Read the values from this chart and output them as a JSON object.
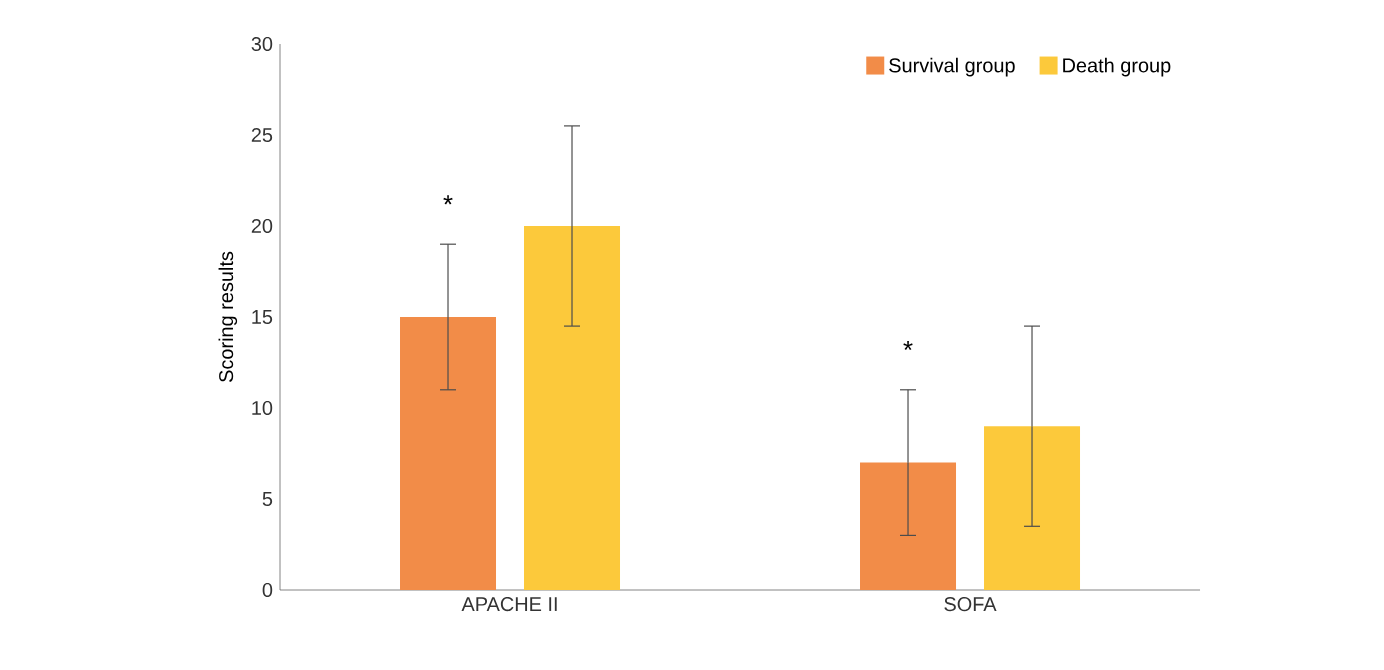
{
  "chart_data": {
    "type": "bar",
    "ylabel": "Scoring results",
    "categories": [
      "APACHE II",
      "SOFA"
    ],
    "series": [
      {
        "name": "Survival group",
        "color": "#f28c48",
        "values": [
          15,
          7
        ],
        "errors": [
          [
            11,
            19
          ],
          [
            3,
            11
          ]
        ]
      },
      {
        "name": "Death group",
        "color": "#fcc93b",
        "values": [
          20,
          9
        ],
        "errors": [
          [
            14.5,
            25.5
          ],
          [
            3.5,
            14.5
          ]
        ]
      }
    ],
    "ylim": [
      0,
      30
    ],
    "yticks": [
      0,
      5,
      10,
      15,
      20,
      25,
      30
    ],
    "grid": false,
    "legend": "top right",
    "annotations": [
      "*",
      "*"
    ]
  }
}
